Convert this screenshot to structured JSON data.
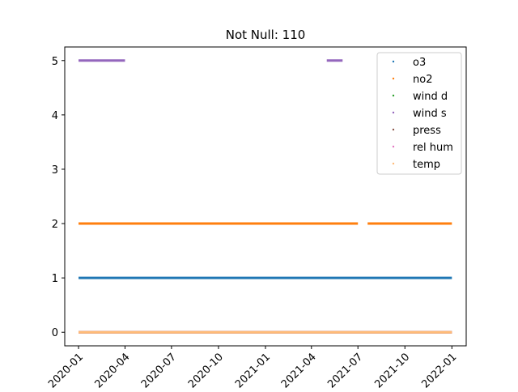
{
  "chart_data": {
    "type": "scatter",
    "title": "Not Null: 110",
    "xlabel": "",
    "ylabel": "",
    "x_axis": "date",
    "xlim": [
      "2019-12-05",
      "2022-01-29"
    ],
    "ylim": [
      -0.25,
      5.25
    ],
    "x_ticks": [
      "2020-01",
      "2020-04",
      "2020-07",
      "2020-10",
      "2021-01",
      "2021-04",
      "2021-07",
      "2021-10",
      "2022-01"
    ],
    "y_ticks": [
      0,
      1,
      2,
      3,
      4,
      5
    ],
    "grid": false,
    "legend_placement": "top-right",
    "series": [
      {
        "name": "o3",
        "color": "#1f77b4",
        "y": 1,
        "segments": [
          [
            "2020-01-01",
            "2022-01-01"
          ]
        ]
      },
      {
        "name": "no2",
        "color": "#ff7f0e",
        "y": 2,
        "segments": [
          [
            "2020-01-01",
            "2021-07-01"
          ],
          [
            "2021-07-20",
            "2022-01-01"
          ]
        ]
      },
      {
        "name": "wind d",
        "color": "#2ca02c",
        "y": 0,
        "segments": [
          [
            "2020-01-01",
            "2022-01-01"
          ]
        ]
      },
      {
        "name": "wind s",
        "color": "#9467bd",
        "y": 5,
        "segments": [
          [
            "2020-01-01",
            "2020-04-01"
          ],
          [
            "2021-05-01",
            "2021-06-01"
          ]
        ]
      },
      {
        "name": "press",
        "color": "#8c564b",
        "y": 0,
        "segments": [
          [
            "2020-01-01",
            "2022-01-01"
          ]
        ]
      },
      {
        "name": "rel hum",
        "color": "#e377c2",
        "y": 0,
        "segments": [
          [
            "2020-01-01",
            "2022-01-01"
          ]
        ]
      },
      {
        "name": "temp",
        "color": "#ffbb78",
        "y": 0,
        "segments": [
          [
            "2020-01-01",
            "2022-01-01"
          ]
        ]
      }
    ]
  }
}
